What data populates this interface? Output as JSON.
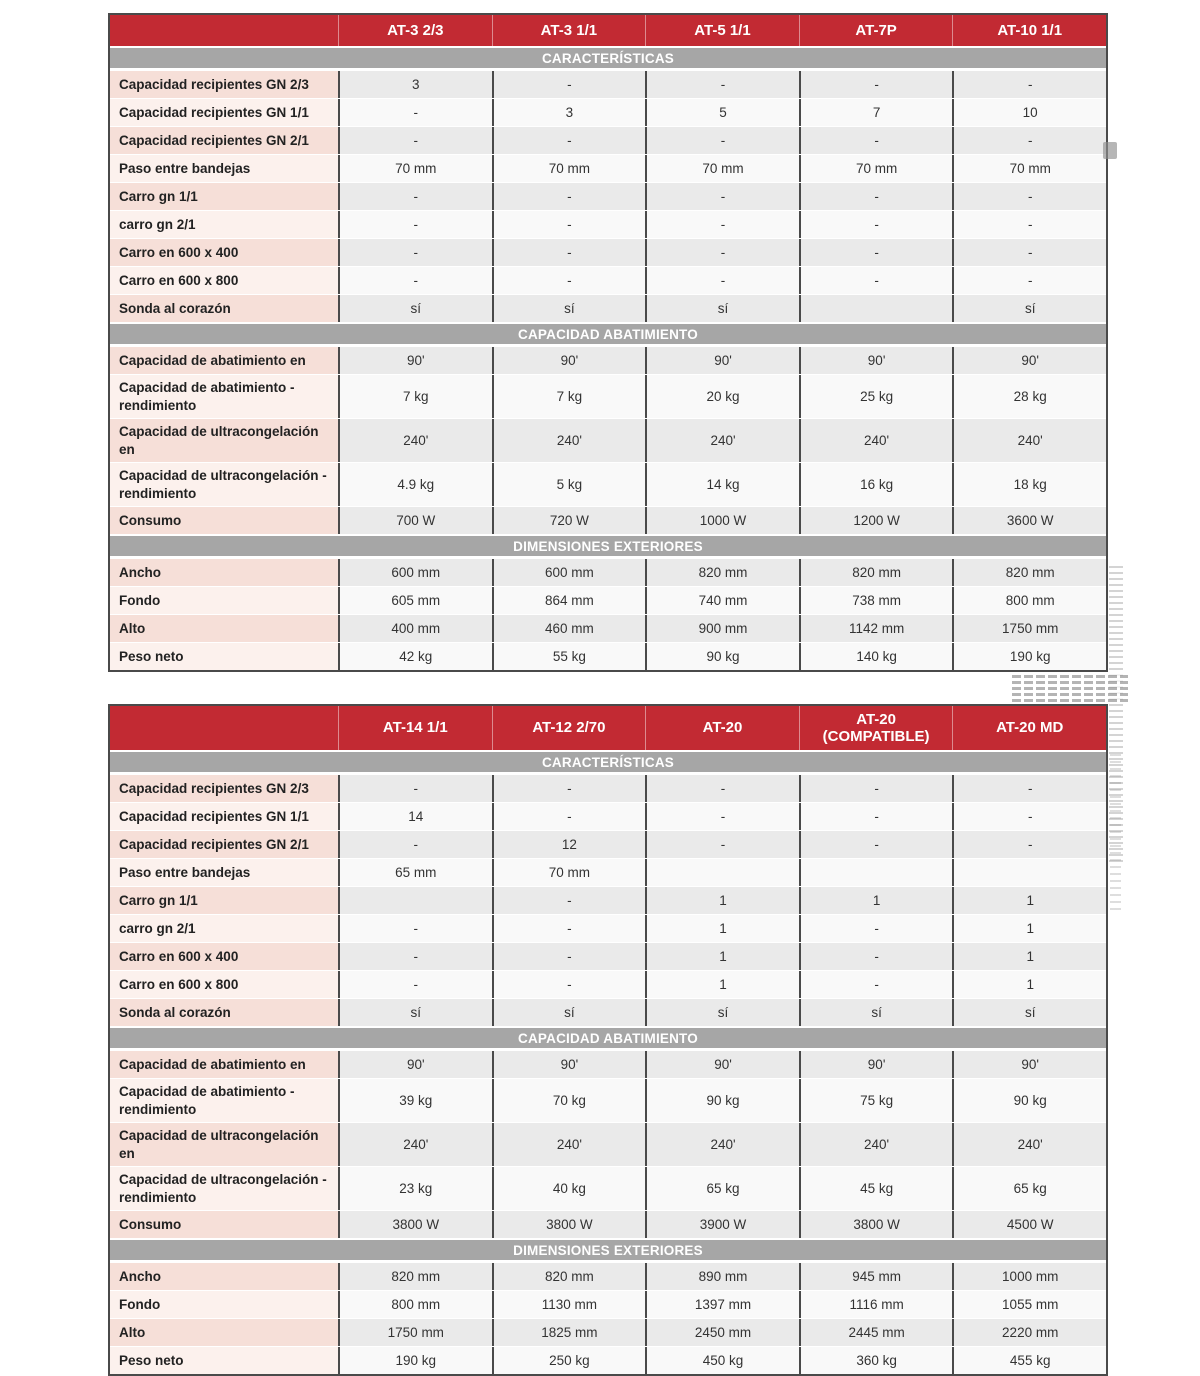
{
  "colors": {
    "header_red": "#C22A33",
    "section_gray": "#A6A6A6",
    "label_pink_dark": "#F6DFD8",
    "label_pink_light": "#FCF1ED",
    "row_gray": "#EAEAEA",
    "row_light": "#F9F9F9",
    "border_dark": "#4A4A4A"
  },
  "tables": [
    {
      "columns": [
        "AT-3 2/3",
        "AT-3 1/1",
        "AT-5 1/1",
        "AT-7P",
        "AT-10 1/1"
      ],
      "sections": [
        {
          "title": "CARACTERÍSTICAS",
          "rows": [
            {
              "label": "Capacidad recipientes GN 2/3",
              "values": [
                "3",
                "-",
                "-",
                "-",
                "-"
              ]
            },
            {
              "label": "Capacidad recipientes GN 1/1",
              "values": [
                "-",
                "3",
                "5",
                "7",
                "10"
              ]
            },
            {
              "label": "Capacidad recipientes GN 2/1",
              "values": [
                "-",
                "-",
                "-",
                "-",
                "-"
              ]
            },
            {
              "label": "Paso entre bandejas",
              "values": [
                "70 mm",
                "70 mm",
                "70 mm",
                "70 mm",
                "70 mm"
              ]
            },
            {
              "label": "Carro gn 1/1",
              "values": [
                "-",
                "-",
                "-",
                "-",
                "-"
              ]
            },
            {
              "label": "carro gn 2/1",
              "values": [
                "-",
                "-",
                "-",
                "-",
                "-"
              ]
            },
            {
              "label": "Carro en 600 x 400",
              "values": [
                "-",
                "-",
                "-",
                "-",
                "-"
              ]
            },
            {
              "label": "Carro en 600 x 800",
              "values": [
                "-",
                "-",
                "-",
                "-",
                "-"
              ]
            },
            {
              "label": "Sonda al corazón",
              "values": [
                "sí",
                "sí",
                "sí",
                "",
                "sí"
              ]
            }
          ]
        },
        {
          "title": "CAPACIDAD ABATIMIENTO",
          "rows": [
            {
              "label": "Capacidad de abatimiento en",
              "values": [
                "90'",
                "90'",
                "90'",
                "90'",
                "90'"
              ]
            },
            {
              "label": "Capacidad de abatimiento - rendimiento",
              "values": [
                "7 kg",
                "7 kg",
                "20 kg",
                "25 kg",
                "28 kg"
              ]
            },
            {
              "label": "Capacidad de ultracongelación en",
              "values": [
                "240'",
                "240'",
                "240'",
                "240'",
                "240'"
              ]
            },
            {
              "label": "Capacidad de ultracongelación - rendimiento",
              "values": [
                "4.9 kg",
                "5 kg",
                "14 kg",
                "16 kg",
                "18 kg"
              ]
            },
            {
              "label": "Consumo",
              "values": [
                "700 W",
                "720 W",
                "1000 W",
                "1200 W",
                "3600 W"
              ]
            }
          ]
        },
        {
          "title": "DIMENSIONES EXTERIORES",
          "rows": [
            {
              "label": "Ancho",
              "values": [
                "600 mm",
                "600 mm",
                "820 mm",
                "820 mm",
                "820 mm"
              ]
            },
            {
              "label": "Fondo",
              "values": [
                "605 mm",
                "864 mm",
                "740 mm",
                "738 mm",
                "800 mm"
              ]
            },
            {
              "label": "Alto",
              "values": [
                "400 mm",
                "460 mm",
                "900 mm",
                "1142 mm",
                "1750 mm"
              ]
            },
            {
              "label": "Peso neto",
              "values": [
                "42 kg",
                "55 kg",
                "90 kg",
                "140 kg",
                "190 kg"
              ]
            }
          ]
        }
      ]
    },
    {
      "columns": [
        "AT-14 1/1",
        "AT-12 2/70",
        "AT-20",
        "AT-20 (COMPATIBLE)",
        "AT-20 MD"
      ],
      "sections": [
        {
          "title": "CARACTERÍSTICAS",
          "rows": [
            {
              "label": "Capacidad recipientes GN 2/3",
              "values": [
                "-",
                "-",
                "-",
                "-",
                "-"
              ]
            },
            {
              "label": "Capacidad recipientes GN 1/1",
              "values": [
                "14",
                "-",
                "-",
                "-",
                "-"
              ]
            },
            {
              "label": "Capacidad recipientes GN 2/1",
              "values": [
                "-",
                "12",
                "-",
                "-",
                "-"
              ]
            },
            {
              "label": "Paso entre bandejas",
              "values": [
                "65 mm",
                "70 mm",
                "",
                "",
                ""
              ]
            },
            {
              "label": "Carro gn 1/1",
              "values": [
                "",
                "-",
                "1",
                "1",
                "1"
              ]
            },
            {
              "label": "carro gn 2/1",
              "values": [
                "-",
                "-",
                "1",
                "-",
                "1"
              ]
            },
            {
              "label": "Carro en 600 x 400",
              "values": [
                "-",
                "-",
                "1",
                "-",
                "1"
              ]
            },
            {
              "label": "Carro en 600 x 800",
              "values": [
                "-",
                "-",
                "1",
                "-",
                "1"
              ]
            },
            {
              "label": "Sonda al corazón",
              "values": [
                "sí",
                "sí",
                "sí",
                "sí",
                "sí"
              ]
            }
          ]
        },
        {
          "title": "CAPACIDAD ABATIMIENTO",
          "rows": [
            {
              "label": "Capacidad de abatimiento en",
              "values": [
                "90'",
                "90'",
                "90'",
                "90'",
                "90'"
              ]
            },
            {
              "label": "Capacidad de abatimiento - rendimiento",
              "values": [
                "39 kg",
                "70 kg",
                "90 kg",
                "75 kg",
                "90 kg"
              ]
            },
            {
              "label": "Capacidad de ultracongelación en",
              "values": [
                "240'",
                "240'",
                "240'",
                "240'",
                "240'"
              ]
            },
            {
              "label": "Capacidad de ultracongelación - rendimiento",
              "values": [
                "23 kg",
                "40 kg",
                "65 kg",
                "45 kg",
                "65 kg"
              ]
            },
            {
              "label": "Consumo",
              "values": [
                "3800 W",
                "3800 W",
                "3900 W",
                "3800 W",
                "4500 W"
              ]
            }
          ]
        },
        {
          "title": "DIMENSIONES EXTERIORES",
          "rows": [
            {
              "label": "Ancho",
              "values": [
                "820 mm",
                "820 mm",
                "890 mm",
                "945 mm",
                "1000 mm"
              ]
            },
            {
              "label": "Fondo",
              "values": [
                "800 mm",
                "1130 mm",
                "1397 mm",
                "1116 mm",
                "1055 mm"
              ]
            },
            {
              "label": "Alto",
              "values": [
                "1750 mm",
                "1825 mm",
                "2450 mm",
                "2445 mm",
                "2220 mm"
              ]
            },
            {
              "label": "Peso neto",
              "values": [
                "190 kg",
                "250 kg",
                "450 kg",
                "360 kg",
                "455 kg"
              ]
            }
          ]
        }
      ]
    }
  ]
}
